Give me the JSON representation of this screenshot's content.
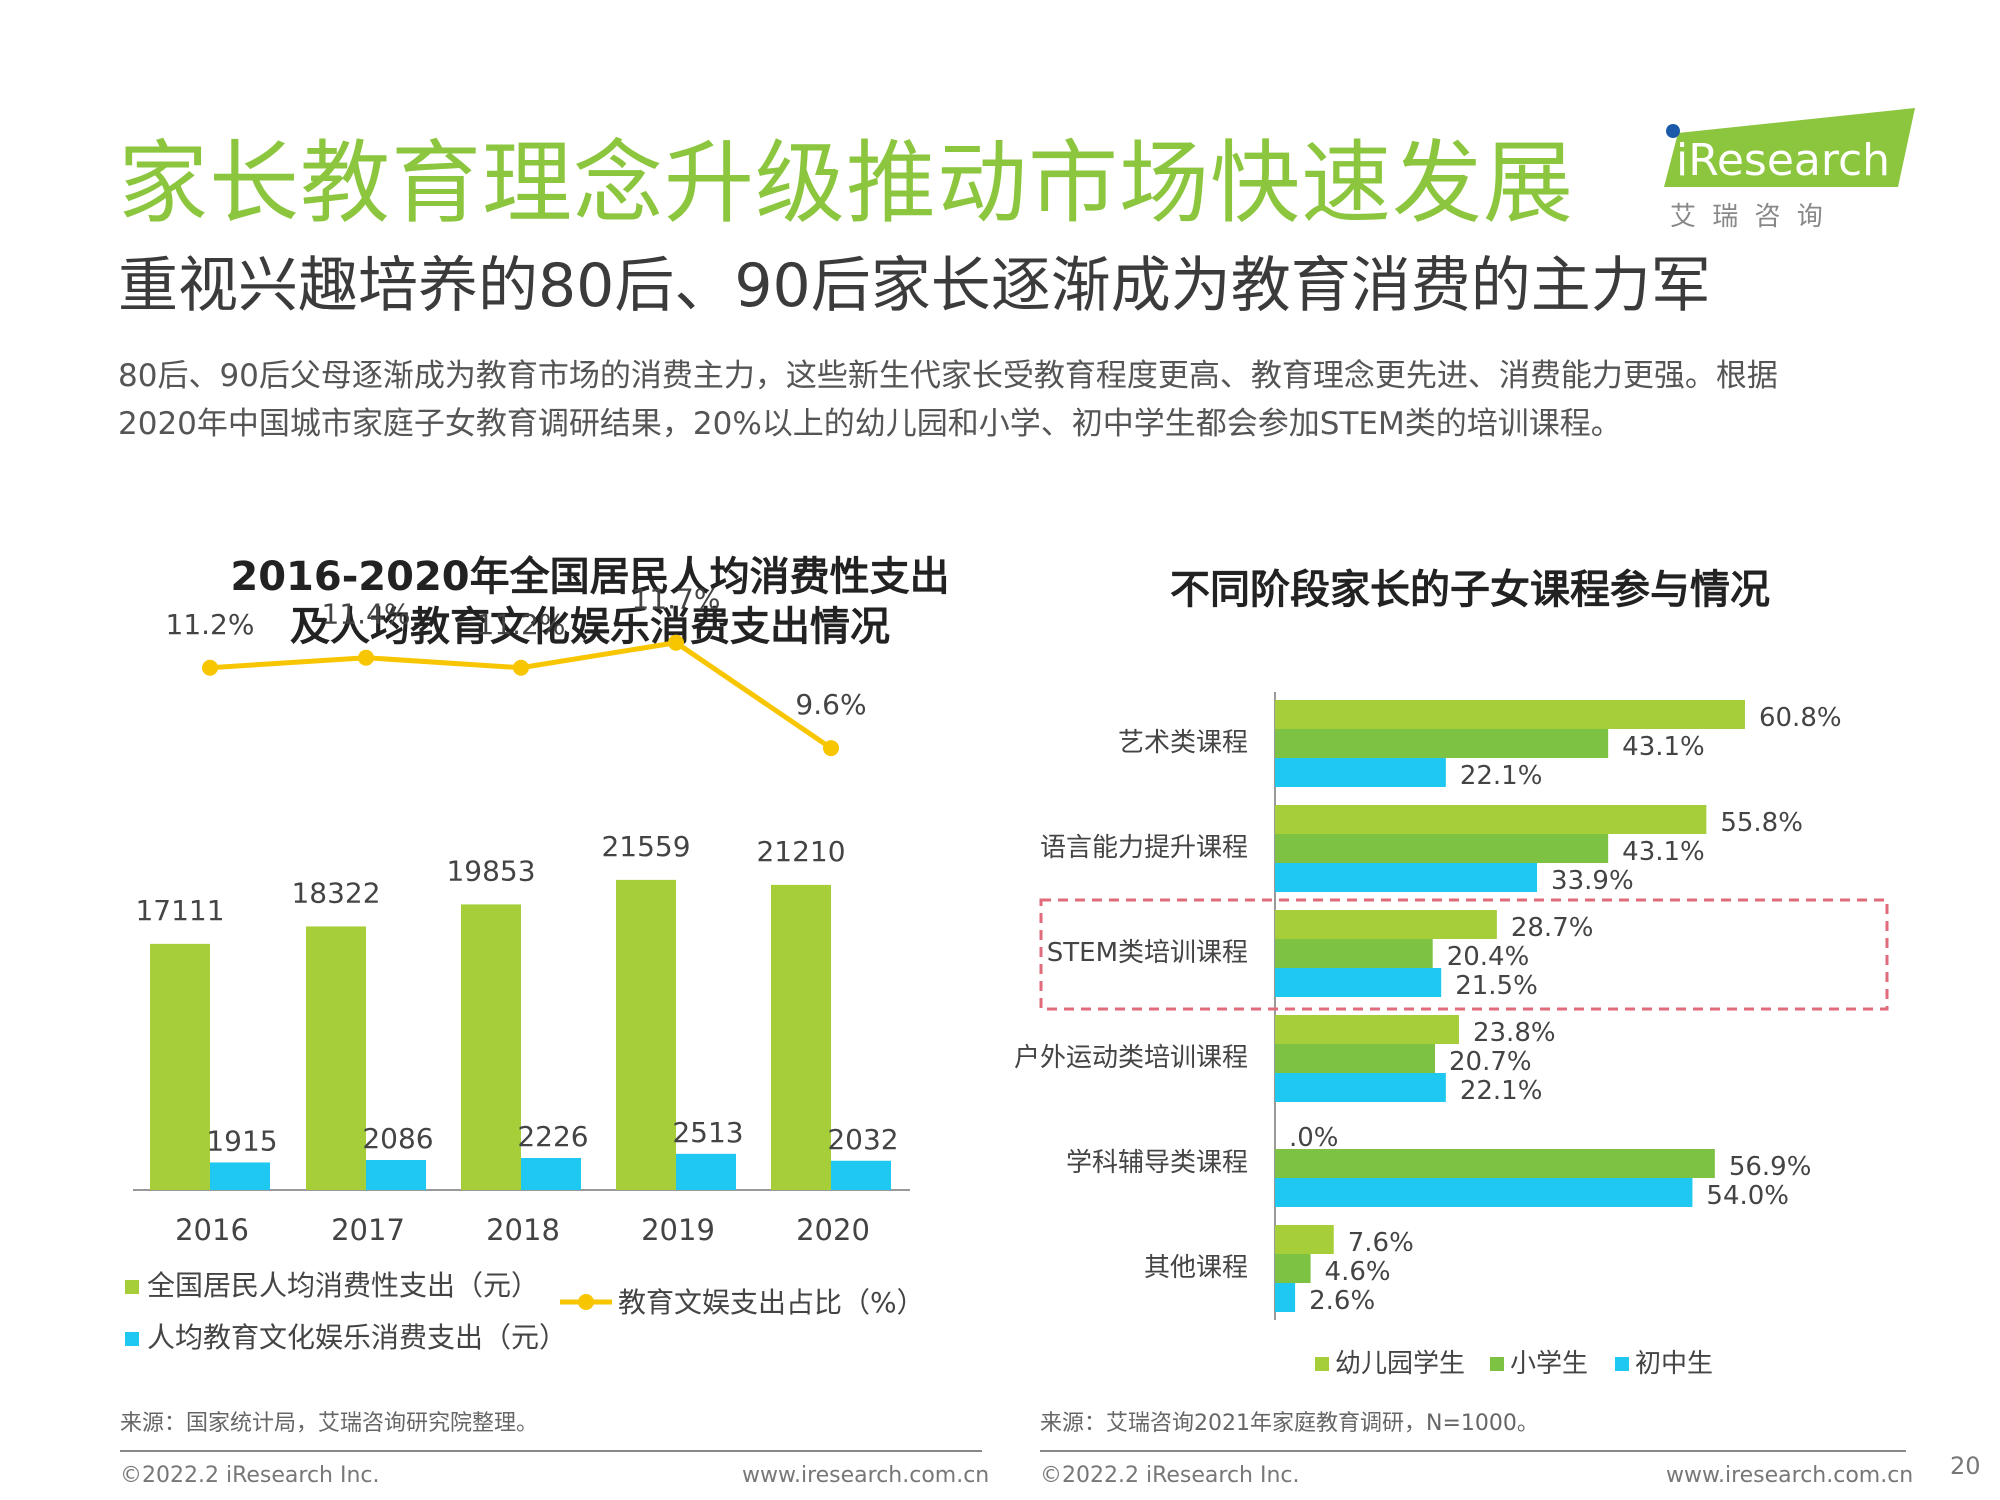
{
  "header": {
    "title": "家长教育理念升级推动市场快速发展",
    "subtitle": "重视兴趣培养的80后、90后家长逐渐成为教育消费的主力军",
    "intro_line1": "80后、90后父母逐渐成为教育市场的消费主力，这些新生代家长受教育程度更高、教育理念更先进、消费能力更强。根据",
    "intro_line2": "2020年中国城市家庭子女教育调研结果，20%以上的幼儿园和小学、初中学生都会参加STEM类的培训课程。"
  },
  "logo": {
    "brand": "iResearch",
    "tagline": "艾 瑞 咨 询"
  },
  "chart_data": [
    {
      "type": "bar",
      "title_line1": "2016-2020年全国居民人均消费性支出",
      "title_line2": "及人均教育文化娱乐消费支出情况",
      "categories": [
        "2016",
        "2017",
        "2018",
        "2019",
        "2020"
      ],
      "series": [
        {
          "name": "全国居民人均消费性支出（元）",
          "values": [
            17111,
            18322,
            19853,
            21559,
            21210
          ],
          "color": "#a6ce39",
          "labels": [
            "17111",
            "18322",
            "19853",
            "21559",
            "21210"
          ]
        },
        {
          "name": "人均教育文化娱乐消费支出（元）",
          "values": [
            1915,
            2086,
            2226,
            2513,
            2032
          ],
          "color": "#1ec8f0",
          "labels": [
            "1915",
            "2086",
            "2226",
            "2513",
            "2032"
          ]
        },
        {
          "name": "教育文娱支出占比（%）",
          "type": "line",
          "values": [
            11.2,
            11.4,
            11.2,
            11.7,
            9.6
          ],
          "color": "#f7c600",
          "labels": [
            "11.2%",
            "11.4%",
            "11.2%",
            "11.7%",
            "9.6%"
          ]
        }
      ],
      "ylim": [
        0,
        25000
      ],
      "line_ylim": [
        0,
        12
      ],
      "grid": false,
      "legend_position": "bottom"
    },
    {
      "type": "bar",
      "orientation": "horizontal",
      "title": "不同阶段家长的子女课程参与情况",
      "categories": [
        "艺术类课程",
        "语言能力提升课程",
        "STEM类培训课程",
        "户外运动类培训课程",
        "学科辅导类课程",
        "其他课程"
      ],
      "series": [
        {
          "name": "幼儿园学生",
          "values": [
            60.8,
            55.8,
            28.7,
            23.8,
            0.0,
            7.6
          ],
          "color": "#a6ce39",
          "labels": [
            "60.8%",
            "55.8%",
            "28.7%",
            "23.8%",
            ".0%",
            "7.6%"
          ]
        },
        {
          "name": "小学生",
          "values": [
            43.1,
            43.1,
            20.4,
            20.7,
            56.9,
            4.6
          ],
          "color": "#7dc242",
          "labels": [
            "43.1%",
            "43.1%",
            "20.4%",
            "20.7%",
            "56.9%",
            "4.6%"
          ]
        },
        {
          "name": "初中生",
          "values": [
            22.1,
            33.9,
            21.5,
            22.1,
            54.0,
            2.6
          ],
          "color": "#1ec8f0",
          "labels": [
            "22.1%",
            "33.9%",
            "21.5%",
            "22.1%",
            "54.0%",
            "2.6%"
          ]
        }
      ],
      "xlim": [
        0,
        70
      ],
      "highlighted_category": "STEM类培训课程",
      "grid": false,
      "legend_position": "bottom"
    }
  ],
  "sources": {
    "left": "来源：国家统计局，艾瑞咨询研究院整理。",
    "right": "来源：艾瑞咨询2021年家庭教育调研，N=1000。"
  },
  "footer": {
    "copyright": "©2022.2 iResearch Inc.",
    "url": "www.iresearch.com.cn"
  },
  "page_number": "20"
}
